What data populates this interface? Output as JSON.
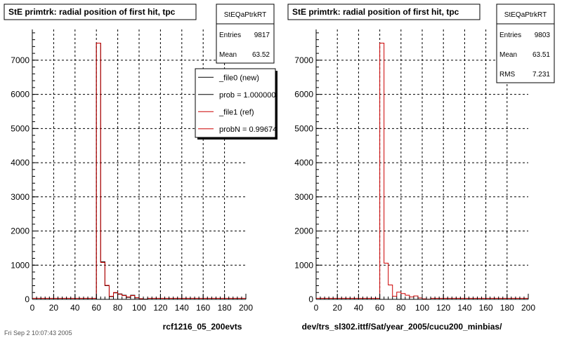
{
  "chart_data": [
    {
      "type": "bar",
      "title": "StE primtrk: radial position of first hit, tpc",
      "xlabel": "rcf1216_05_200evts",
      "ylabel": "",
      "xlim": [
        0,
        200
      ],
      "ylim": [
        0,
        7900
      ],
      "xticks": [
        0,
        20,
        40,
        60,
        80,
        100,
        120,
        140,
        160,
        180,
        200
      ],
      "yticks": [
        0,
        1000,
        2000,
        3000,
        4000,
        5000,
        6000,
        7000
      ],
      "grid": true,
      "legend": "top-right",
      "bin_width": 4,
      "series": [
        {
          "name": "_file0 (new)",
          "color": "#000000",
          "x": [
            60,
            64,
            68,
            72,
            76,
            80,
            84,
            88,
            92,
            96,
            100,
            104
          ],
          "values": [
            7500,
            1100,
            400,
            80,
            190,
            160,
            120,
            60,
            120,
            40,
            20,
            5
          ]
        },
        {
          "name": "_file1 (ref)",
          "color": "#cc0000",
          "x": [
            60,
            64,
            68,
            72,
            76,
            80,
            84,
            88,
            92,
            96,
            100,
            104
          ],
          "values": [
            7500,
            1080,
            410,
            90,
            200,
            150,
            110,
            70,
            110,
            50,
            20,
            5
          ]
        }
      ],
      "legend_entries": [
        {
          "label": "_file0 (new)",
          "color": "#000000"
        },
        {
          "label": "prob = 1.000000",
          "color": "#000000"
        },
        {
          "label": "_file1 (ref)",
          "color": "#cc0000"
        },
        {
          "label": "probN = 0.99674",
          "color": "#cc0000"
        }
      ],
      "stats": {
        "name": "StEQaPtrkRT",
        "rows": [
          {
            "label": "Entries",
            "value": "9817"
          },
          {
            "label": "Mean",
            "value": "63.52"
          }
        ]
      }
    },
    {
      "type": "bar",
      "title": "StE primtrk: radial position of first hit, tpc",
      "xlabel": "dev/trs_sl302.ittf/Sat/year_2005/cucu200_minbias/",
      "ylabel": "",
      "xlim": [
        0,
        200
      ],
      "ylim": [
        0,
        7900
      ],
      "xticks": [
        0,
        20,
        40,
        60,
        80,
        100,
        120,
        140,
        160,
        180,
        200
      ],
      "yticks": [
        0,
        1000,
        2000,
        3000,
        4000,
        5000,
        6000,
        7000
      ],
      "grid": true,
      "bin_width": 4,
      "series": [
        {
          "name": "",
          "color": "#cc0000",
          "x": [
            60,
            64,
            68,
            72,
            76,
            80,
            84,
            88,
            92,
            96,
            100,
            104
          ],
          "values": [
            7500,
            1060,
            420,
            90,
            210,
            170,
            120,
            70,
            100,
            40,
            15,
            5
          ]
        }
      ],
      "stats": {
        "name": "StEQaPtrkRT",
        "rows": [
          {
            "label": "Entries",
            "value": "9803"
          },
          {
            "label": "Mean",
            "value": "63.51"
          },
          {
            "label": "RMS",
            "value": "7.231"
          }
        ]
      }
    }
  ],
  "footer_text": "Fri Sep 2 10:07:43 2005"
}
